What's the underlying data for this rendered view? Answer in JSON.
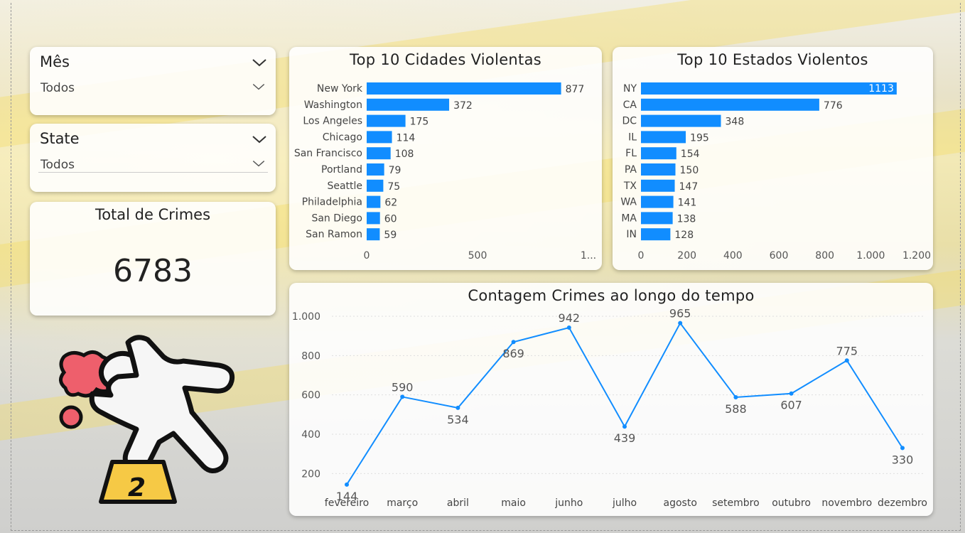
{
  "slicers": [
    {
      "title": "Mês",
      "value": "Todos"
    },
    {
      "title": "State",
      "value": "Todos"
    }
  ],
  "kpi": {
    "title": "Total de Crimes",
    "value": "6783"
  },
  "colors": {
    "bar": "#118DFF",
    "line": "#118DFF",
    "text": "#222222"
  },
  "icons": {
    "dropdown": "chevron-down-icon",
    "illustration": "crime-scene-body-outline-icon"
  },
  "illustration": {
    "marker_number": "2"
  },
  "chart_data": [
    {
      "type": "bar",
      "orientation": "horizontal",
      "title": "Top 10 Cidades Violentas",
      "categories": [
        "New York",
        "Washington",
        "Los Angeles",
        "Chicago",
        "San Francisco",
        "Portland",
        "Seattle",
        "Philadelphia",
        "San Diego",
        "San Ramon"
      ],
      "values": [
        877,
        372,
        175,
        114,
        108,
        79,
        75,
        62,
        60,
        59
      ],
      "xticks": [
        "0",
        "500",
        "1..."
      ],
      "xlim": [
        0,
        1000
      ]
    },
    {
      "type": "bar",
      "orientation": "horizontal",
      "title": "Top 10 Estados Violentos",
      "categories": [
        "NY",
        "CA",
        "DC",
        "IL",
        "FL",
        "PA",
        "TX",
        "WA",
        "MA",
        "IN"
      ],
      "values": [
        1113,
        776,
        348,
        195,
        154,
        150,
        147,
        141,
        138,
        128
      ],
      "xticks": [
        "0",
        "200",
        "400",
        "600",
        "800",
        "1.000",
        "1.200"
      ],
      "xlim": [
        0,
        1200
      ]
    },
    {
      "type": "line",
      "title": "Contagem Crimes ao longo do tempo",
      "x": [
        "fevereiro",
        "março",
        "abril",
        "maio",
        "junho",
        "julho",
        "agosto",
        "setembro",
        "outubro",
        "novembro",
        "dezembro"
      ],
      "values": [
        144,
        590,
        534,
        869,
        942,
        439,
        965,
        588,
        607,
        775,
        330
      ],
      "yticks": [
        "200",
        "400",
        "600",
        "800",
        "1.000"
      ],
      "ylim": [
        100,
        1000
      ],
      "grid": true
    }
  ]
}
